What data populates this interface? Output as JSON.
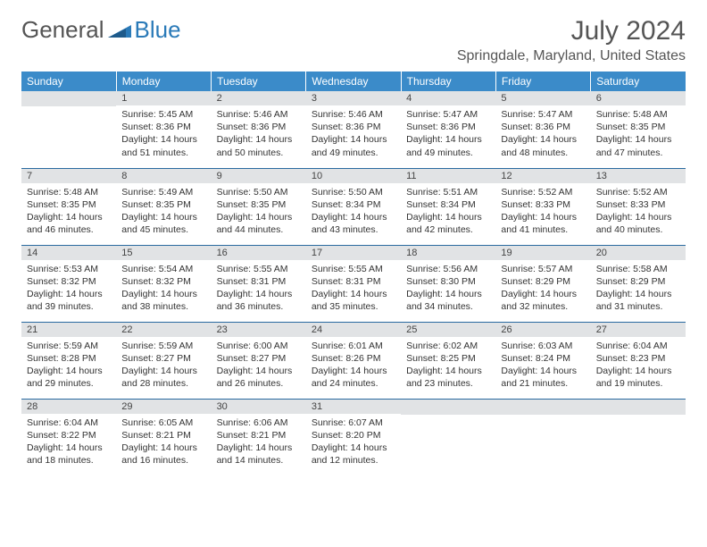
{
  "logo": {
    "text1": "General",
    "text2": "Blue"
  },
  "title": "July 2024",
  "location": "Springdale, Maryland, United States",
  "colors": {
    "header_bg": "#3b8bc9",
    "header_fg": "#ffffff",
    "daynum_bg": "#e1e3e5",
    "border": "#2a6aa0",
    "text": "#333333",
    "title_text": "#555555"
  },
  "weekdays": [
    "Sunday",
    "Monday",
    "Tuesday",
    "Wednesday",
    "Thursday",
    "Friday",
    "Saturday"
  ],
  "weeks": [
    [
      null,
      {
        "n": "1",
        "sr": "Sunrise: 5:45 AM",
        "ss": "Sunset: 8:36 PM",
        "d1": "Daylight: 14 hours",
        "d2": "and 51 minutes."
      },
      {
        "n": "2",
        "sr": "Sunrise: 5:46 AM",
        "ss": "Sunset: 8:36 PM",
        "d1": "Daylight: 14 hours",
        "d2": "and 50 minutes."
      },
      {
        "n": "3",
        "sr": "Sunrise: 5:46 AM",
        "ss": "Sunset: 8:36 PM",
        "d1": "Daylight: 14 hours",
        "d2": "and 49 minutes."
      },
      {
        "n": "4",
        "sr": "Sunrise: 5:47 AM",
        "ss": "Sunset: 8:36 PM",
        "d1": "Daylight: 14 hours",
        "d2": "and 49 minutes."
      },
      {
        "n": "5",
        "sr": "Sunrise: 5:47 AM",
        "ss": "Sunset: 8:36 PM",
        "d1": "Daylight: 14 hours",
        "d2": "and 48 minutes."
      },
      {
        "n": "6",
        "sr": "Sunrise: 5:48 AM",
        "ss": "Sunset: 8:35 PM",
        "d1": "Daylight: 14 hours",
        "d2": "and 47 minutes."
      }
    ],
    [
      {
        "n": "7",
        "sr": "Sunrise: 5:48 AM",
        "ss": "Sunset: 8:35 PM",
        "d1": "Daylight: 14 hours",
        "d2": "and 46 minutes."
      },
      {
        "n": "8",
        "sr": "Sunrise: 5:49 AM",
        "ss": "Sunset: 8:35 PM",
        "d1": "Daylight: 14 hours",
        "d2": "and 45 minutes."
      },
      {
        "n": "9",
        "sr": "Sunrise: 5:50 AM",
        "ss": "Sunset: 8:35 PM",
        "d1": "Daylight: 14 hours",
        "d2": "and 44 minutes."
      },
      {
        "n": "10",
        "sr": "Sunrise: 5:50 AM",
        "ss": "Sunset: 8:34 PM",
        "d1": "Daylight: 14 hours",
        "d2": "and 43 minutes."
      },
      {
        "n": "11",
        "sr": "Sunrise: 5:51 AM",
        "ss": "Sunset: 8:34 PM",
        "d1": "Daylight: 14 hours",
        "d2": "and 42 minutes."
      },
      {
        "n": "12",
        "sr": "Sunrise: 5:52 AM",
        "ss": "Sunset: 8:33 PM",
        "d1": "Daylight: 14 hours",
        "d2": "and 41 minutes."
      },
      {
        "n": "13",
        "sr": "Sunrise: 5:52 AM",
        "ss": "Sunset: 8:33 PM",
        "d1": "Daylight: 14 hours",
        "d2": "and 40 minutes."
      }
    ],
    [
      {
        "n": "14",
        "sr": "Sunrise: 5:53 AM",
        "ss": "Sunset: 8:32 PM",
        "d1": "Daylight: 14 hours",
        "d2": "and 39 minutes."
      },
      {
        "n": "15",
        "sr": "Sunrise: 5:54 AM",
        "ss": "Sunset: 8:32 PM",
        "d1": "Daylight: 14 hours",
        "d2": "and 38 minutes."
      },
      {
        "n": "16",
        "sr": "Sunrise: 5:55 AM",
        "ss": "Sunset: 8:31 PM",
        "d1": "Daylight: 14 hours",
        "d2": "and 36 minutes."
      },
      {
        "n": "17",
        "sr": "Sunrise: 5:55 AM",
        "ss": "Sunset: 8:31 PM",
        "d1": "Daylight: 14 hours",
        "d2": "and 35 minutes."
      },
      {
        "n": "18",
        "sr": "Sunrise: 5:56 AM",
        "ss": "Sunset: 8:30 PM",
        "d1": "Daylight: 14 hours",
        "d2": "and 34 minutes."
      },
      {
        "n": "19",
        "sr": "Sunrise: 5:57 AM",
        "ss": "Sunset: 8:29 PM",
        "d1": "Daylight: 14 hours",
        "d2": "and 32 minutes."
      },
      {
        "n": "20",
        "sr": "Sunrise: 5:58 AM",
        "ss": "Sunset: 8:29 PM",
        "d1": "Daylight: 14 hours",
        "d2": "and 31 minutes."
      }
    ],
    [
      {
        "n": "21",
        "sr": "Sunrise: 5:59 AM",
        "ss": "Sunset: 8:28 PM",
        "d1": "Daylight: 14 hours",
        "d2": "and 29 minutes."
      },
      {
        "n": "22",
        "sr": "Sunrise: 5:59 AM",
        "ss": "Sunset: 8:27 PM",
        "d1": "Daylight: 14 hours",
        "d2": "and 28 minutes."
      },
      {
        "n": "23",
        "sr": "Sunrise: 6:00 AM",
        "ss": "Sunset: 8:27 PM",
        "d1": "Daylight: 14 hours",
        "d2": "and 26 minutes."
      },
      {
        "n": "24",
        "sr": "Sunrise: 6:01 AM",
        "ss": "Sunset: 8:26 PM",
        "d1": "Daylight: 14 hours",
        "d2": "and 24 minutes."
      },
      {
        "n": "25",
        "sr": "Sunrise: 6:02 AM",
        "ss": "Sunset: 8:25 PM",
        "d1": "Daylight: 14 hours",
        "d2": "and 23 minutes."
      },
      {
        "n": "26",
        "sr": "Sunrise: 6:03 AM",
        "ss": "Sunset: 8:24 PM",
        "d1": "Daylight: 14 hours",
        "d2": "and 21 minutes."
      },
      {
        "n": "27",
        "sr": "Sunrise: 6:04 AM",
        "ss": "Sunset: 8:23 PM",
        "d1": "Daylight: 14 hours",
        "d2": "and 19 minutes."
      }
    ],
    [
      {
        "n": "28",
        "sr": "Sunrise: 6:04 AM",
        "ss": "Sunset: 8:22 PM",
        "d1": "Daylight: 14 hours",
        "d2": "and 18 minutes."
      },
      {
        "n": "29",
        "sr": "Sunrise: 6:05 AM",
        "ss": "Sunset: 8:21 PM",
        "d1": "Daylight: 14 hours",
        "d2": "and 16 minutes."
      },
      {
        "n": "30",
        "sr": "Sunrise: 6:06 AM",
        "ss": "Sunset: 8:21 PM",
        "d1": "Daylight: 14 hours",
        "d2": "and 14 minutes."
      },
      {
        "n": "31",
        "sr": "Sunrise: 6:07 AM",
        "ss": "Sunset: 8:20 PM",
        "d1": "Daylight: 14 hours",
        "d2": "and 12 minutes."
      },
      null,
      null,
      null
    ]
  ]
}
